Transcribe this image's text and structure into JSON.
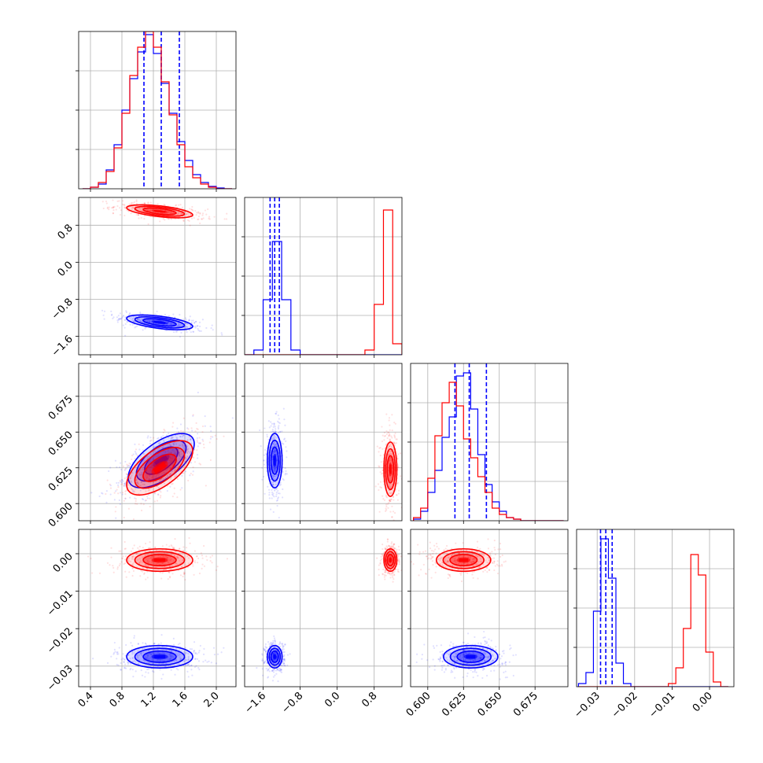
{
  "chart_data": {
    "type": "corner",
    "grid": true,
    "colors": {
      "blue": "#0000ff",
      "red": "#ff0000"
    },
    "parameters": [
      {
        "range": [
          0.25,
          2.25
        ],
        "ticks": [
          "0.4",
          "0.8",
          "1.2",
          "1.6",
          "2.0"
        ],
        "tick_values": [
          0.4,
          0.8,
          1.2,
          1.6,
          2.0
        ]
      },
      {
        "range": [
          -2.0,
          1.4
        ],
        "ticks": [
          "−1.6",
          "−0.8",
          "0.0",
          "0.8"
        ],
        "tick_values": [
          -1.6,
          -0.8,
          0.0,
          0.8
        ]
      },
      {
        "range": [
          0.588,
          0.698
        ],
        "ticks": [
          "0.600",
          "0.625",
          "0.650",
          "0.675"
        ],
        "tick_values": [
          0.6,
          0.625,
          0.65,
          0.675
        ]
      },
      {
        "range": [
          -0.0355,
          0.0065
        ],
        "ticks": [
          "−0.03",
          "−0.02",
          "−0.01",
          "0.00"
        ],
        "tick_values": [
          -0.03,
          -0.02,
          -0.01,
          0.0
        ]
      }
    ],
    "histograms": [
      {
        "param": 0,
        "bins": [
          0.3,
          0.4,
          0.5,
          0.6,
          0.7,
          0.8,
          0.9,
          1.0,
          1.1,
          1.2,
          1.3,
          1.4,
          1.5,
          1.6,
          1.7,
          1.8,
          1.9,
          2.0,
          2.1,
          2.2
        ],
        "series": [
          {
            "name": "blue",
            "counts": [
              0.0,
              0.01,
              0.03,
              0.12,
              0.28,
              0.5,
              0.7,
              0.87,
              0.98,
              0.86,
              0.67,
              0.48,
              0.3,
              0.18,
              0.09,
              0.04,
              0.015,
              0.005,
              0.0
            ],
            "quantiles": [
              1.08,
              1.3,
              1.53
            ]
          },
          {
            "name": "red",
            "counts": [
              0.0,
              0.01,
              0.04,
              0.11,
              0.26,
              0.48,
              0.72,
              0.9,
              1.0,
              0.9,
              0.68,
              0.47,
              0.28,
              0.14,
              0.07,
              0.03,
              0.01,
              0.0,
              0.0
            ]
          }
        ]
      },
      {
        "param": 1,
        "bins": [
          -2.0,
          -1.8,
          -1.6,
          -1.4,
          -1.2,
          -1.0,
          -0.8,
          -0.6,
          -0.4,
          -0.2,
          0.0,
          0.2,
          0.4,
          0.6,
          0.8,
          1.0,
          1.2,
          1.4
        ],
        "series": [
          {
            "name": "blue",
            "counts": [
              0.0,
              0.03,
              0.35,
              0.72,
              0.35,
              0.03,
              0.0,
              0.0,
              0.0,
              0.0,
              0.0,
              0.0,
              0.0,
              0.0,
              0.0,
              0.0,
              0.0
            ],
            "quantiles": [
              -1.45,
              -1.35,
              -1.25
            ]
          },
          {
            "name": "red",
            "counts": [
              0.0,
              0.0,
              0.0,
              0.0,
              0.0,
              0.0,
              0.0,
              0.0,
              0.0,
              0.0,
              0.0,
              0.0,
              0.0,
              0.03,
              0.32,
              0.92,
              0.07
            ]
          }
        ]
      },
      {
        "param": 2,
        "bins": [
          0.59,
          0.595,
          0.6,
          0.605,
          0.61,
          0.615,
          0.62,
          0.625,
          0.63,
          0.635,
          0.64,
          0.645,
          0.65,
          0.655,
          0.66,
          0.665,
          0.67,
          0.675,
          0.68,
          0.685,
          0.69,
          0.695
        ],
        "series": [
          {
            "name": "blue",
            "counts": [
              0.01,
              0.06,
              0.18,
              0.32,
              0.53,
              0.66,
              0.92,
              0.94,
              0.71,
              0.42,
              0.23,
              0.12,
              0.06,
              0.02,
              0.01,
              0.0,
              0.0,
              0.0,
              0.0,
              0.0,
              0.0
            ],
            "quantiles": [
              0.619,
              0.629,
              0.641
            ]
          },
          {
            "name": "red",
            "counts": [
              0.02,
              0.08,
              0.27,
              0.54,
              0.75,
              0.88,
              0.73,
              0.52,
              0.4,
              0.28,
              0.18,
              0.08,
              0.04,
              0.02,
              0.01,
              0.0,
              0.0,
              0.0,
              0.0,
              0.0,
              0.0
            ]
          }
        ]
      },
      {
        "param": 3,
        "bins": [
          -0.035,
          -0.033,
          -0.031,
          -0.029,
          -0.027,
          -0.025,
          -0.023,
          -0.021,
          -0.019,
          -0.017,
          -0.015,
          -0.013,
          -0.011,
          -0.009,
          -0.007,
          -0.005,
          -0.003,
          -0.001,
          0.001,
          0.003,
          0.005
        ],
        "series": [
          {
            "name": "blue",
            "counts": [
              0.02,
              0.09,
              0.48,
              0.94,
              0.69,
              0.15,
              0.02,
              0.0,
              0.0,
              0.0,
              0.0,
              0.0,
              0.0,
              0.0,
              0.0,
              0.0,
              0.0,
              0.0,
              0.0,
              0.0
            ],
            "quantiles": [
              -0.0291,
              -0.0277,
              -0.026
            ]
          },
          {
            "name": "red",
            "counts": [
              0.0,
              0.0,
              0.0,
              0.0,
              0.0,
              0.0,
              0.0,
              0.0,
              0.0,
              0.0,
              0.0,
              0.0,
              0.02,
              0.12,
              0.37,
              0.84,
              0.71,
              0.22,
              0.03,
              0.0
            ]
          }
        ]
      }
    ],
    "scatter_panels": [
      {
        "x_param": 0,
        "y_param": 1,
        "series": [
          {
            "name": "blue",
            "center": [
              1.28,
              -1.3
            ],
            "sd": [
              0.21,
              0.08
            ],
            "corr": -0.55
          },
          {
            "name": "red",
            "center": [
              1.28,
              1.1
            ],
            "sd": [
              0.21,
              0.07
            ],
            "corr": -0.55
          }
        ]
      },
      {
        "x_param": 0,
        "y_param": 2,
        "series": [
          {
            "name": "blue",
            "center": [
              1.3,
              0.63
            ],
            "sd": [
              0.21,
              0.0095
            ],
            "corr": 0.62
          },
          {
            "name": "red",
            "center": [
              1.28,
              0.625
            ],
            "sd": [
              0.21,
              0.0095
            ],
            "corr": 0.62
          }
        ]
      },
      {
        "x_param": 0,
        "y_param": 3,
        "series": [
          {
            "name": "blue",
            "center": [
              1.28,
              -0.0275
            ],
            "sd": [
              0.21,
              0.0015
            ],
            "corr": 0.0
          },
          {
            "name": "red",
            "center": [
              1.28,
              -0.0017
            ],
            "sd": [
              0.21,
              0.0015
            ],
            "corr": 0.0
          }
        ]
      },
      {
        "x_param": 1,
        "y_param": 2,
        "series": [
          {
            "name": "blue",
            "center": [
              -1.35,
              0.63
            ],
            "sd": [
              0.08,
              0.0095
            ],
            "corr": 0.0
          },
          {
            "name": "red",
            "center": [
              1.15,
              0.624
            ],
            "sd": [
              0.07,
              0.0095
            ],
            "corr": 0.0
          }
        ]
      },
      {
        "x_param": 1,
        "y_param": 3,
        "series": [
          {
            "name": "blue",
            "center": [
              -1.35,
              -0.0275
            ],
            "sd": [
              0.08,
              0.0015
            ],
            "corr": 0.0
          },
          {
            "name": "red",
            "center": [
              1.15,
              -0.0017
            ],
            "sd": [
              0.07,
              0.0015
            ],
            "corr": 0.0
          }
        ]
      },
      {
        "x_param": 2,
        "y_param": 3,
        "series": [
          {
            "name": "blue",
            "center": [
              0.63,
              -0.0275
            ],
            "sd": [
              0.0095,
              0.0015
            ],
            "corr": 0.0
          },
          {
            "name": "red",
            "center": [
              0.625,
              -0.0017
            ],
            "sd": [
              0.0095,
              0.0015
            ],
            "corr": 0.0
          }
        ]
      }
    ]
  }
}
